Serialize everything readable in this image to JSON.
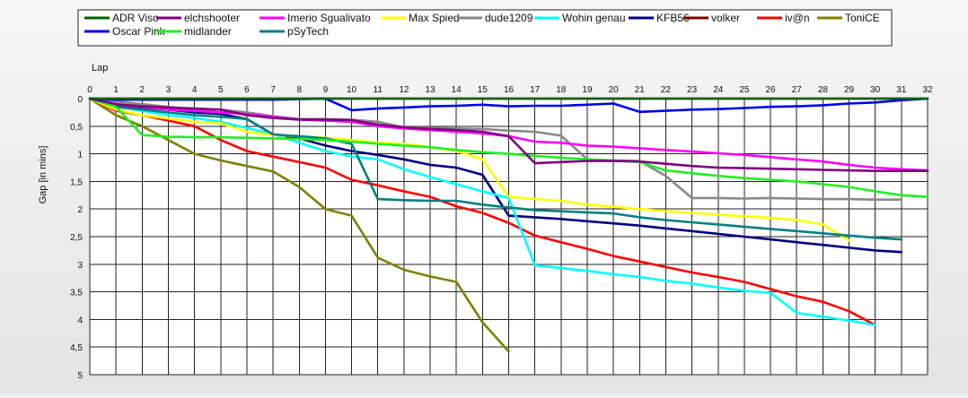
{
  "chart_data": {
    "type": "line",
    "xlabel": "Lap",
    "ylabel": "Gap [in mins]",
    "xlim": [
      0,
      32
    ],
    "ylim": [
      0,
      5
    ],
    "y_inverted": true,
    "grid": true,
    "legend_position": "top",
    "x_ticks": [
      "0",
      "1",
      "2",
      "3",
      "4",
      "5",
      "6",
      "7",
      "8",
      "9",
      "10",
      "11",
      "12",
      "13",
      "14",
      "15",
      "16",
      "17",
      "18",
      "19",
      "20",
      "21",
      "22",
      "23",
      "24",
      "25",
      "26",
      "27",
      "28",
      "29",
      "30",
      "31",
      "32"
    ],
    "y_ticks": [
      "0",
      "0,5",
      "1",
      "1,5",
      "2",
      "2,5",
      "3",
      "3,5",
      "4",
      "4,5",
      "5"
    ],
    "series": [
      {
        "name": "ADR Viso",
        "color": "#006400",
        "x": [
          0,
          1,
          2,
          3,
          4,
          5,
          6,
          7,
          8,
          9,
          10,
          11,
          12,
          13,
          14,
          15,
          16,
          17,
          18,
          19,
          20,
          21,
          22,
          23,
          24,
          25,
          26,
          27,
          28,
          29,
          30,
          31,
          32
        ],
        "y": [
          0,
          0,
          0,
          0,
          0,
          0,
          0,
          0,
          0,
          0,
          0,
          0,
          0,
          0,
          0,
          0,
          0,
          0,
          0,
          0,
          0,
          0,
          0,
          0,
          0,
          0,
          0,
          0,
          0,
          0,
          0,
          0,
          0
        ]
      },
      {
        "name": "Oscar Pink",
        "color": "#0000ee",
        "x": [
          0,
          1,
          2,
          3,
          4,
          5,
          6,
          7,
          8,
          9,
          10,
          11,
          12,
          13,
          14,
          15,
          16,
          17,
          18,
          19,
          20,
          21,
          22,
          23,
          24,
          25,
          26,
          27,
          28,
          29,
          30,
          31,
          32
        ],
        "y": [
          0,
          0.02,
          0.02,
          0.02,
          0.02,
          0.02,
          0.02,
          0.02,
          0.01,
          0,
          0.21,
          0.18,
          0.16,
          0.14,
          0.13,
          0.11,
          0.14,
          0.13,
          0.13,
          0.11,
          0.09,
          0.24,
          0.22,
          0.2,
          0.19,
          0.17,
          0.15,
          0.14,
          0.12,
          0.09,
          0.07,
          0.03,
          0
        ]
      },
      {
        "name": "elchshooter",
        "color": "#800080",
        "x": [
          0,
          1,
          2,
          3,
          4,
          5,
          6,
          7,
          8,
          9,
          10,
          11,
          12,
          13,
          14,
          15,
          16,
          17,
          18,
          19,
          20,
          21,
          22,
          23,
          24,
          25,
          26,
          27,
          28,
          29,
          30,
          31,
          32
        ],
        "y": [
          0,
          0.1,
          0.14,
          0.16,
          0.18,
          0.2,
          0.3,
          0.35,
          0.38,
          0.38,
          0.39,
          0.47,
          0.52,
          0.55,
          0.57,
          0.6,
          0.68,
          1.17,
          1.15,
          1.13,
          1.13,
          1.14,
          1.18,
          1.22,
          1.25,
          1.26,
          1.27,
          1.28,
          1.29,
          1.3,
          1.31,
          1.31,
          1.31
        ]
      },
      {
        "name": "midlander",
        "color": "#22ee22",
        "x": [
          0,
          1,
          2,
          3,
          4,
          5,
          6,
          7,
          8,
          9,
          10,
          11,
          12,
          13,
          14,
          15,
          16,
          17,
          18,
          19,
          20,
          21,
          22,
          23,
          24,
          25,
          26,
          27,
          28,
          29,
          30,
          31,
          32
        ],
        "y": [
          0,
          0.15,
          0.66,
          0.69,
          0.7,
          0.7,
          0.71,
          0.72,
          0.73,
          0.75,
          0.78,
          0.82,
          0.85,
          0.88,
          0.93,
          0.97,
          1.0,
          1.04,
          1.07,
          1.1,
          1.12,
          1.15,
          1.3,
          1.35,
          1.4,
          1.44,
          1.47,
          1.5,
          1.55,
          1.6,
          1.68,
          1.75,
          1.78
        ]
      },
      {
        "name": "Imerio Sgualivato",
        "color": "#ff00ff",
        "x": [
          0,
          1,
          2,
          3,
          4,
          5,
          6,
          7,
          8,
          9,
          10,
          11,
          12,
          13,
          14,
          15,
          16,
          17,
          18,
          19,
          20,
          21,
          22,
          23,
          24,
          25,
          26,
          27,
          28,
          29,
          30,
          31,
          32
        ],
        "y": [
          0,
          0.1,
          0.15,
          0.2,
          0.22,
          0.25,
          0.28,
          0.33,
          0.38,
          0.4,
          0.42,
          0.5,
          0.54,
          0.57,
          0.6,
          0.63,
          0.68,
          0.78,
          0.8,
          0.85,
          0.87,
          0.9,
          0.93,
          0.96,
          0.99,
          1.02,
          1.06,
          1.1,
          1.14,
          1.2,
          1.25,
          1.28,
          1.3
        ]
      },
      {
        "name": "pSyTech",
        "color": "#008080",
        "x": [
          0,
          1,
          2,
          3,
          4,
          5,
          6,
          7,
          8,
          9,
          10,
          11,
          12,
          13,
          14,
          15,
          16,
          17,
          18,
          19,
          20,
          21,
          22,
          23,
          24,
          25,
          26,
          27,
          28,
          29,
          30,
          31
        ],
        "y": [
          0,
          0.15,
          0.2,
          0.25,
          0.3,
          0.33,
          0.37,
          0.65,
          0.68,
          0.72,
          0.82,
          1.82,
          1.84,
          1.85,
          1.85,
          1.92,
          1.97,
          2.02,
          2.04,
          2.06,
          2.08,
          2.15,
          2.2,
          2.24,
          2.28,
          2.32,
          2.36,
          2.4,
          2.44,
          2.48,
          2.52,
          2.55
        ]
      },
      {
        "name": "Max Spied",
        "color": "#ffff00",
        "x": [
          0,
          1,
          2,
          3,
          4,
          5,
          6,
          7,
          8,
          9,
          10,
          11,
          12,
          13,
          14,
          15,
          16,
          17,
          18,
          19,
          20,
          21,
          22,
          23,
          24,
          25,
          26,
          27,
          28,
          29
        ],
        "y": [
          0,
          0.2,
          0.3,
          0.36,
          0.42,
          0.45,
          0.6,
          0.66,
          0.68,
          0.71,
          0.75,
          0.8,
          0.82,
          0.88,
          0.95,
          1.1,
          1.78,
          1.82,
          1.85,
          1.92,
          1.96,
          2.0,
          2.04,
          2.07,
          2.1,
          2.13,
          2.16,
          2.2,
          2.28,
          2.57
        ]
      },
      {
        "name": "dude1209",
        "color": "#888888",
        "x": [
          0,
          1,
          2,
          3,
          4,
          5,
          6,
          7,
          8,
          9,
          10,
          11,
          12,
          13,
          14,
          15,
          16,
          17,
          18,
          19,
          20,
          21,
          22,
          23,
          24,
          25,
          26,
          27,
          28,
          29,
          30,
          31
        ],
        "y": [
          0,
          0.05,
          0.1,
          0.15,
          0.2,
          0.2,
          0.25,
          0.32,
          0.37,
          0.37,
          0.38,
          0.42,
          0.52,
          0.53,
          0.54,
          0.55,
          0.58,
          0.6,
          0.67,
          1.1,
          1.12,
          1.13,
          1.4,
          1.8,
          1.8,
          1.81,
          1.8,
          1.81,
          1.82,
          1.82,
          1.83,
          1.83
        ]
      },
      {
        "name": "Wohin genau",
        "color": "#00ffff",
        "x": [
          0,
          1,
          2,
          3,
          4,
          5,
          6,
          7,
          8,
          9,
          10,
          11,
          12,
          13,
          14,
          15,
          16,
          17,
          18,
          19,
          20,
          21,
          22,
          23,
          24,
          25,
          26,
          27,
          28,
          29,
          30
        ],
        "y": [
          0,
          0.15,
          0.22,
          0.3,
          0.35,
          0.42,
          0.53,
          0.65,
          0.8,
          0.95,
          1.05,
          1.1,
          1.28,
          1.42,
          1.55,
          1.68,
          1.8,
          3.02,
          3.07,
          3.12,
          3.18,
          3.23,
          3.3,
          3.35,
          3.42,
          3.48,
          3.52,
          3.88,
          3.95,
          4.02,
          4.1
        ]
      },
      {
        "name": "KFB56",
        "color": "#000080",
        "x": [
          0,
          1,
          2,
          3,
          4,
          5,
          6,
          7,
          8,
          9,
          10,
          11,
          12,
          13,
          14,
          15,
          16,
          17,
          18,
          19,
          20,
          21,
          22,
          23,
          24,
          25,
          26,
          27,
          28,
          29,
          30,
          31
        ],
        "y": [
          0,
          0.12,
          0.16,
          0.2,
          0.25,
          0.28,
          0.37,
          0.65,
          0.72,
          0.85,
          0.95,
          1.02,
          1.1,
          1.2,
          1.25,
          1.38,
          2.12,
          2.15,
          2.18,
          2.22,
          2.26,
          2.3,
          2.35,
          2.4,
          2.45,
          2.5,
          2.55,
          2.6,
          2.65,
          2.7,
          2.75,
          2.78
        ]
      },
      {
        "name": "volker",
        "color": "#800000",
        "x": [
          0,
          1,
          2,
          3,
          4,
          5,
          6,
          7,
          8,
          9,
          10,
          11,
          12,
          13,
          14,
          15,
          16,
          17,
          18,
          19,
          20,
          21,
          22,
          23,
          24,
          25,
          26,
          27,
          28,
          29,
          30,
          31,
          32
        ],
        "y": [
          0,
          0,
          0,
          0,
          0,
          0,
          0,
          0,
          0,
          0,
          0,
          0,
          0,
          0,
          0,
          0,
          0,
          0,
          0,
          0,
          0,
          0,
          0,
          0,
          0,
          0,
          0,
          0,
          0,
          0,
          0,
          0,
          0
        ]
      },
      {
        "name": "iv@n",
        "color": "#ff0000",
        "x": [
          0,
          1,
          2,
          3,
          4,
          5,
          6,
          7,
          8,
          9,
          10,
          11,
          12,
          13,
          14,
          15,
          16,
          17,
          18,
          19,
          20,
          21,
          22,
          23,
          24,
          25,
          26,
          27,
          28,
          29,
          30
        ],
        "y": [
          0,
          0.22,
          0.3,
          0.4,
          0.5,
          0.75,
          0.95,
          1.05,
          1.15,
          1.25,
          1.47,
          1.57,
          1.68,
          1.78,
          1.95,
          2.07,
          2.25,
          2.48,
          2.6,
          2.72,
          2.85,
          2.95,
          3.05,
          3.15,
          3.23,
          3.32,
          3.45,
          3.58,
          3.68,
          3.85,
          4.1
        ]
      },
      {
        "name": "ToniCE",
        "color": "#808000",
        "x": [
          0,
          1,
          2,
          3,
          4,
          5,
          6,
          7,
          8,
          9,
          10,
          11,
          12,
          13,
          14,
          15,
          16
        ],
        "y": [
          0,
          0.3,
          0.5,
          0.75,
          1.0,
          1.12,
          1.22,
          1.32,
          1.6,
          2.0,
          2.12,
          2.88,
          3.1,
          3.22,
          3.32,
          4.05,
          4.58
        ]
      }
    ]
  }
}
